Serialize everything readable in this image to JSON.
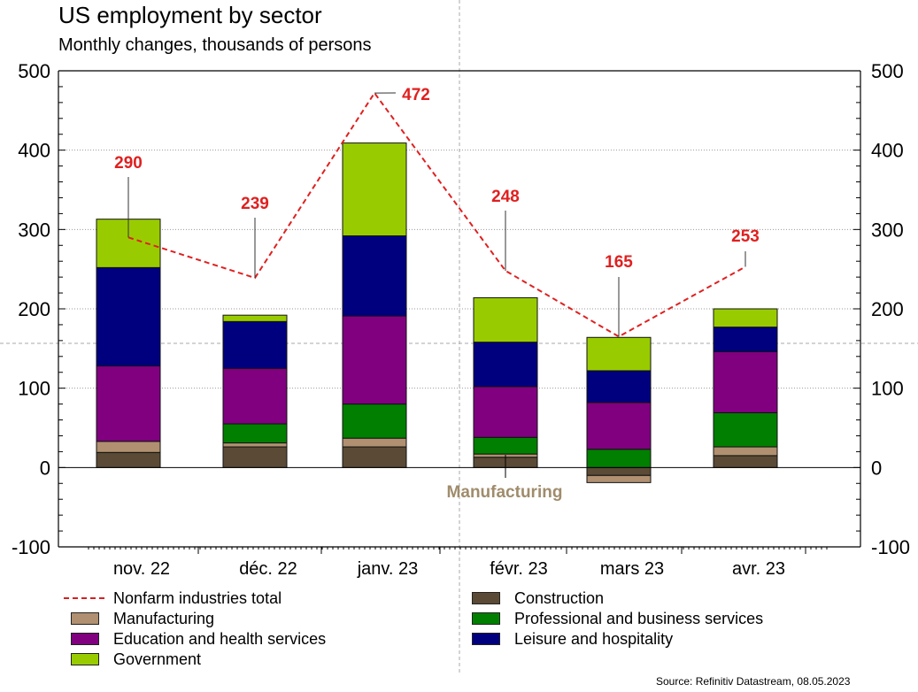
{
  "title": "US employment by sector",
  "subtitle": "Monthly changes, thousands of persons",
  "source": "Source: Refinitiv Datastream, 08.05.2023",
  "colors": {
    "construction": "#5b4a35",
    "manufacturing": "#b09070",
    "professional": "#007f00",
    "education": "#800080",
    "leisure": "#00007f",
    "government": "#99cc00",
    "total_line": "#e02020",
    "annotation_manufacturing": "#a08c6c"
  },
  "legend": [
    {
      "key": "total",
      "label": "Nonfarm industries total",
      "type": "line"
    },
    {
      "key": "manufacturing",
      "label": "Manufacturing",
      "type": "box"
    },
    {
      "key": "education",
      "label": "Education and health services",
      "type": "box"
    },
    {
      "key": "government",
      "label": "Government",
      "type": "box"
    },
    {
      "key": "construction",
      "label": "Construction",
      "type": "box"
    },
    {
      "key": "professional",
      "label": "Professional and business services",
      "type": "box"
    },
    {
      "key": "leisure",
      "label": "Leisure and hospitality",
      "type": "box"
    }
  ],
  "chart_data": {
    "type": "bar",
    "stacked": true,
    "title": "US employment by sector",
    "subtitle": "Monthly changes, thousands of persons",
    "xlabel": "",
    "ylabel": "",
    "ylim": [
      -100,
      500
    ],
    "yticks": [
      -100,
      0,
      100,
      200,
      300,
      400,
      500
    ],
    "grid": true,
    "legend_position": "bottom",
    "categories": [
      "nov. 22",
      "déc. 22",
      "janv. 23",
      "févr. 23",
      "mars 23",
      "avr. 23"
    ],
    "series": [
      {
        "name": "Construction",
        "key": "construction",
        "values": [
          19,
          26,
          26,
          13,
          -10,
          15
        ]
      },
      {
        "name": "Manufacturing",
        "key": "manufacturing",
        "values": [
          14,
          5,
          11,
          4,
          -9,
          11
        ]
      },
      {
        "name": "Professional and business services",
        "key": "professional",
        "values": [
          0,
          24,
          43,
          21,
          23,
          43
        ]
      },
      {
        "name": "Education and health services",
        "key": "education",
        "values": [
          95,
          70,
          111,
          64,
          59,
          77
        ]
      },
      {
        "name": "Leisure and hospitality",
        "key": "leisure",
        "values": [
          124,
          59,
          101,
          56,
          40,
          31
        ]
      },
      {
        "name": "Government",
        "key": "government",
        "values": [
          61,
          8,
          117,
          56,
          42,
          23
        ]
      }
    ],
    "line": {
      "name": "Nonfarm industries total",
      "values": [
        290,
        239,
        472,
        248,
        165,
        253
      ],
      "labels": [
        "290",
        "239",
        "472",
        "248",
        "165",
        "253"
      ]
    },
    "annotations": [
      {
        "text": "Manufacturing",
        "category": "févr. 23"
      }
    ]
  }
}
